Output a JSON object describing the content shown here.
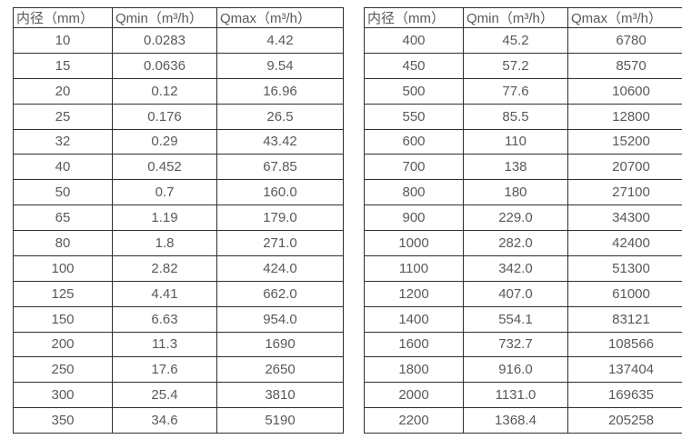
{
  "page": {
    "background_color": "#ffffff",
    "border_color": "#2f2f2f",
    "text_color": "#595959"
  },
  "tables": [
    {
      "name": "flow-table-small-diameters",
      "headers": [
        "内径（mm）",
        "Qmin（m³/h）",
        "Qmax（m³/h）"
      ],
      "rows": [
        [
          "10",
          "0.0283",
          "4.42"
        ],
        [
          "15",
          "0.0636",
          "9.54"
        ],
        [
          "20",
          "0.12",
          "16.96"
        ],
        [
          "25",
          "0.176",
          "26.5"
        ],
        [
          "32",
          "0.29",
          "43.42"
        ],
        [
          "40",
          "0.452",
          "67.85"
        ],
        [
          "50",
          "0.7",
          "160.0"
        ],
        [
          "65",
          "1.19",
          "179.0"
        ],
        [
          "80",
          "1.8",
          "271.0"
        ],
        [
          "100",
          "2.82",
          "424.0"
        ],
        [
          "125",
          "4.41",
          "662.0"
        ],
        [
          "150",
          "6.63",
          "954.0"
        ],
        [
          "200",
          "11.3",
          "1690"
        ],
        [
          "250",
          "17.6",
          "2650"
        ],
        [
          "300",
          "25.4",
          "3810"
        ],
        [
          "350",
          "34.6",
          "5190"
        ]
      ]
    },
    {
      "name": "flow-table-large-diameters",
      "headers": [
        "内径（mm）",
        "Qmin（m³/h）",
        "Qmax（m³/h）"
      ],
      "rows": [
        [
          "400",
          "45.2",
          "6780"
        ],
        [
          "450",
          "57.2",
          "8570"
        ],
        [
          "500",
          "77.6",
          "10600"
        ],
        [
          "550",
          "85.5",
          "12800"
        ],
        [
          "600",
          "110",
          "15200"
        ],
        [
          "700",
          "138",
          "20700"
        ],
        [
          "800",
          "180",
          "27100"
        ],
        [
          "900",
          "229.0",
          "34300"
        ],
        [
          "1000",
          "282.0",
          "42400"
        ],
        [
          "1100",
          "342.0",
          "51300"
        ],
        [
          "1200",
          "407.0",
          "61000"
        ],
        [
          "1400",
          "554.1",
          "83121"
        ],
        [
          "1600",
          "732.7",
          "108566"
        ],
        [
          "1800",
          "916.0",
          "137404"
        ],
        [
          "2000",
          "1131.0",
          "169635"
        ],
        [
          "2200",
          "1368.4",
          "205258"
        ]
      ]
    }
  ]
}
